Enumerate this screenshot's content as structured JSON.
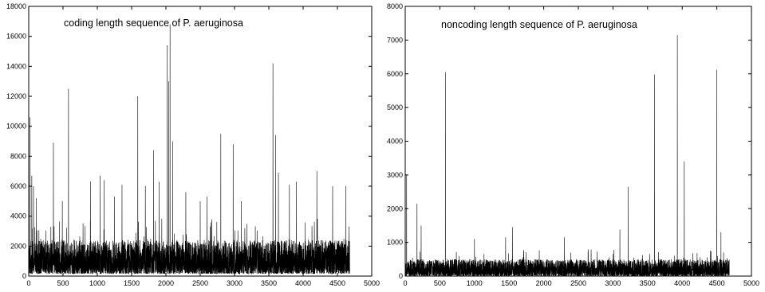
{
  "chart_data": [
    {
      "type": "line",
      "title": "coding length sequence of P. aeruginosa",
      "xlabel": "",
      "ylabel": "",
      "xlim": [
        0,
        5000
      ],
      "ylim": [
        0,
        18000
      ],
      "x_ticks": [
        "0",
        "500",
        "1000",
        "1500",
        "2000",
        "2500",
        "3000",
        "3500",
        "4000",
        "4500",
        "5000"
      ],
      "y_ticks": [
        "0",
        "2000",
        "4000",
        "6000",
        "8000",
        "10000",
        "12000",
        "14000",
        "16000",
        "18000"
      ],
      "n_points": 4680,
      "baseline": {
        "min": 150,
        "max": 2400
      },
      "spikes": [
        [
          20,
          10600
        ],
        [
          45,
          6700
        ],
        [
          70,
          6000
        ],
        [
          110,
          5200
        ],
        [
          360,
          8900
        ],
        [
          490,
          5000
        ],
        [
          580,
          12500
        ],
        [
          900,
          6300
        ],
        [
          1040,
          6700
        ],
        [
          1100,
          6400
        ],
        [
          1250,
          5300
        ],
        [
          1360,
          6100
        ],
        [
          1590,
          12000
        ],
        [
          1700,
          6000
        ],
        [
          1820,
          8400
        ],
        [
          1900,
          6300
        ],
        [
          2020,
          15400
        ],
        [
          2040,
          13000
        ],
        [
          2060,
          16800
        ],
        [
          2100,
          9000
        ],
        [
          2290,
          5600
        ],
        [
          2500,
          5000
        ],
        [
          2600,
          5300
        ],
        [
          2800,
          9500
        ],
        [
          2980,
          8800
        ],
        [
          3100,
          5000
        ],
        [
          3560,
          14200
        ],
        [
          3600,
          9400
        ],
        [
          3640,
          6900
        ],
        [
          3800,
          6100
        ],
        [
          3900,
          6300
        ],
        [
          4200,
          7000
        ],
        [
          4430,
          6000
        ],
        [
          4620,
          6000
        ]
      ],
      "color": "#000000"
    },
    {
      "type": "line",
      "title": "noncoding length sequence of P. aeruginosa",
      "xlabel": "",
      "ylabel": "",
      "xlim": [
        0,
        5000
      ],
      "ylim": [
        0,
        8000
      ],
      "x_ticks": [
        "0",
        "500",
        "1000",
        "1500",
        "2000",
        "2500",
        "3000",
        "3500",
        "4000",
        "4500",
        "5000"
      ],
      "y_ticks": [
        "0",
        "1000",
        "2000",
        "3000",
        "4000",
        "5000",
        "6000",
        "7000",
        "8000"
      ],
      "n_points": 4680,
      "baseline": {
        "min": 0,
        "max": 500
      },
      "spikes": [
        [
          20,
          3000
        ],
        [
          170,
          2150
        ],
        [
          230,
          1500
        ],
        [
          580,
          6050
        ],
        [
          1000,
          1100
        ],
        [
          1450,
          1150
        ],
        [
          1550,
          1450
        ],
        [
          2300,
          1150
        ],
        [
          3100,
          1380
        ],
        [
          3220,
          2650
        ],
        [
          3600,
          5980
        ],
        [
          3930,
          7150
        ],
        [
          4030,
          3400
        ],
        [
          4500,
          6120
        ],
        [
          4560,
          1300
        ]
      ],
      "color": "#000000"
    }
  ]
}
